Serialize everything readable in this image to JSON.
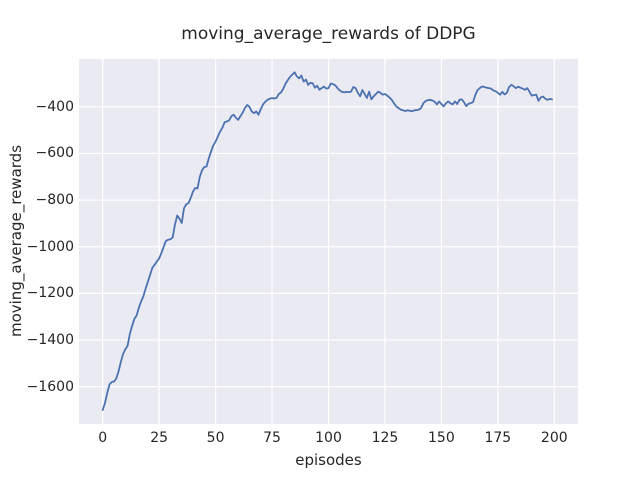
{
  "figure": {
    "background": "#ffffff"
  },
  "chart_data": {
    "type": "line",
    "title": "moving_average_rewards of DDPG",
    "xlabel": "episodes",
    "ylabel": "moving_average_rewards",
    "xlim": [
      -10.5,
      210.5
    ],
    "ylim": [
      -1760,
      -195
    ],
    "xticks": [
      0,
      25,
      50,
      75,
      100,
      125,
      150,
      175,
      200
    ],
    "xtick_labels": [
      "0",
      "25",
      "50",
      "75",
      "100",
      "125",
      "150",
      "175",
      "200"
    ],
    "yticks": [
      -400,
      -600,
      -800,
      -1000,
      -1200,
      -1400,
      -1600
    ],
    "ytick_labels": [
      "−400",
      "−600",
      "−800",
      "−1000",
      "−1200",
      "−1400",
      "−1600"
    ],
    "grid": true,
    "legend": null,
    "styles": {
      "plot_bg": "#eaeaf2",
      "grid_color": "#ffffff",
      "line_color": "#4c72b0",
      "text_color": "#262626"
    },
    "series": [
      {
        "name": "moving_average_rewards",
        "x": [
          0,
          1,
          2,
          3,
          4,
          5,
          6,
          7,
          8,
          9,
          10,
          11,
          12,
          13,
          14,
          15,
          16,
          17,
          18,
          19,
          20,
          21,
          22,
          23,
          24,
          25,
          26,
          27,
          28,
          29,
          30,
          31,
          32,
          33,
          34,
          35,
          36,
          37,
          38,
          39,
          40,
          41,
          42,
          43,
          44,
          45,
          46,
          47,
          48,
          49,
          50,
          51,
          52,
          53,
          54,
          55,
          56,
          57,
          58,
          59,
          60,
          61,
          62,
          63,
          64,
          65,
          66,
          67,
          68,
          69,
          70,
          71,
          72,
          73,
          74,
          75,
          76,
          77,
          78,
          79,
          80,
          81,
          82,
          83,
          84,
          85,
          86,
          87,
          88,
          89,
          90,
          91,
          92,
          93,
          94,
          95,
          96,
          97,
          98,
          99,
          100,
          101,
          102,
          103,
          104,
          105,
          106,
          107,
          108,
          109,
          110,
          111,
          112,
          113,
          114,
          115,
          116,
          117,
          118,
          119,
          120,
          121,
          122,
          123,
          124,
          125,
          126,
          127,
          128,
          129,
          130,
          131,
          132,
          133,
          134,
          135,
          136,
          137,
          138,
          139,
          140,
          141,
          142,
          143,
          144,
          145,
          146,
          147,
          148,
          149,
          150,
          151,
          152,
          153,
          154,
          155,
          156,
          157,
          158,
          159,
          160,
          161,
          162,
          163,
          164,
          165,
          166,
          167,
          168,
          169,
          170,
          171,
          172,
          173,
          174,
          175,
          176,
          177,
          178,
          179,
          180,
          181,
          182,
          183,
          184,
          185,
          186,
          187,
          188,
          189,
          190,
          191,
          192,
          193,
          194,
          195,
          196,
          197,
          198,
          199
        ],
        "y": [
          -1700,
          -1670,
          -1628,
          -1590,
          -1580,
          -1578,
          -1565,
          -1535,
          -1495,
          -1460,
          -1440,
          -1425,
          -1375,
          -1340,
          -1310,
          -1295,
          -1262,
          -1235,
          -1213,
          -1180,
          -1150,
          -1120,
          -1090,
          -1077,
          -1063,
          -1050,
          -1027,
          -1000,
          -975,
          -970,
          -968,
          -960,
          -905,
          -866,
          -880,
          -898,
          -835,
          -818,
          -813,
          -790,
          -763,
          -748,
          -750,
          -700,
          -672,
          -658,
          -656,
          -620,
          -591,
          -565,
          -549,
          -527,
          -506,
          -490,
          -466,
          -463,
          -458,
          -440,
          -434,
          -447,
          -456,
          -440,
          -425,
          -405,
          -392,
          -400,
          -420,
          -427,
          -420,
          -434,
          -410,
          -390,
          -378,
          -370,
          -365,
          -363,
          -364,
          -362,
          -345,
          -338,
          -322,
          -300,
          -285,
          -271,
          -262,
          -252,
          -270,
          -278,
          -266,
          -292,
          -283,
          -306,
          -297,
          -299,
          -318,
          -310,
          -327,
          -320,
          -313,
          -322,
          -320,
          -300,
          -303,
          -308,
          -320,
          -330,
          -336,
          -338,
          -336,
          -337,
          -335,
          -315,
          -320,
          -340,
          -355,
          -328,
          -345,
          -362,
          -335,
          -368,
          -355,
          -345,
          -335,
          -340,
          -348,
          -345,
          -352,
          -360,
          -370,
          -385,
          -398,
          -405,
          -412,
          -415,
          -418,
          -415,
          -417,
          -419,
          -415,
          -414,
          -412,
          -405,
          -385,
          -375,
          -372,
          -370,
          -373,
          -378,
          -390,
          -377,
          -388,
          -398,
          -385,
          -377,
          -385,
          -390,
          -377,
          -388,
          -370,
          -368,
          -380,
          -397,
          -387,
          -384,
          -380,
          -350,
          -328,
          -320,
          -313,
          -315,
          -318,
          -320,
          -322,
          -330,
          -333,
          -340,
          -348,
          -336,
          -347,
          -340,
          -315,
          -306,
          -312,
          -320,
          -314,
          -318,
          -322,
          -327,
          -320,
          -335,
          -352,
          -350,
          -348,
          -374,
          -360,
          -356,
          -365,
          -370,
          -366,
          -368
        ]
      }
    ]
  }
}
